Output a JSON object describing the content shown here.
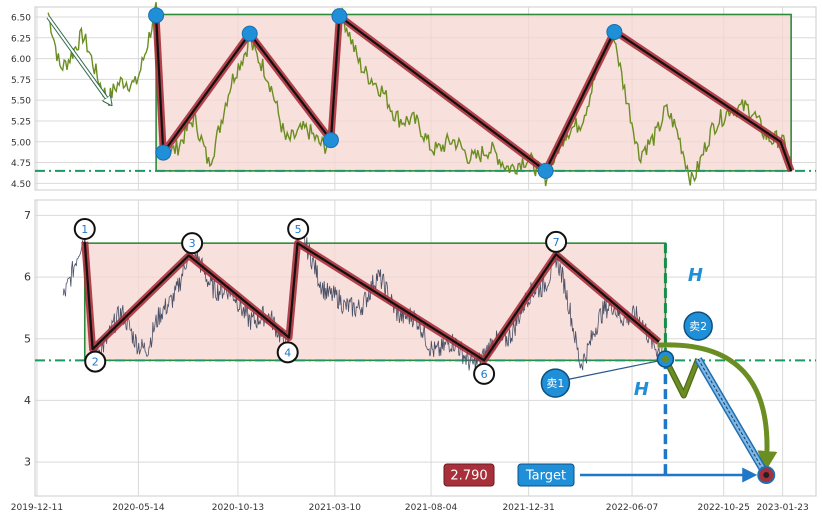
{
  "colors": {
    "panel_bg": "#eaeaf2",
    "grid": "#ffffff",
    "price_top": "#6b8e23",
    "price_bottom": "#4a5066",
    "box_fill": "#f5d5d0",
    "box_edge": "#2e8b3a",
    "zig_outer": "#a8303a",
    "zig_inner": "#111111",
    "node_blue": "#1f8fd8",
    "target_red": "#a8303a",
    "label_blue": "#1f8fd8",
    "dashed_green": "#178f46",
    "arrow_olive": "#6b8e23"
  },
  "chart_data": [
    {
      "type": "line",
      "panel": "top",
      "yticks": [
        "4.50",
        "4.75",
        "5.00",
        "5.25",
        "5.50",
        "5.75",
        "6.00",
        "6.25",
        "6.50"
      ],
      "ylim": [
        4.42,
        6.62
      ],
      "x_range_days": [
        0,
        1185
      ],
      "grid": true,
      "box": {
        "x0_day": 182,
        "x1_day": 1152,
        "y_low": 4.65,
        "y_high": 6.53
      },
      "support_level": 4.65,
      "zigzag": [
        {
          "day": 182,
          "value": 6.5
        },
        {
          "day": 193,
          "value": 4.87
        },
        {
          "day": 325,
          "value": 6.3
        },
        {
          "day": 449,
          "value": 5.02
        },
        {
          "day": 462,
          "value": 6.51
        },
        {
          "day": 777,
          "value": 4.65
        },
        {
          "day": 882,
          "value": 6.33
        },
        {
          "day": 1136,
          "value": 5.0
        },
        {
          "day": 1152,
          "value": 4.65
        }
      ],
      "blue_nodes": [
        {
          "day": 182,
          "value": 6.52
        },
        {
          "day": 193,
          "value": 4.87
        },
        {
          "day": 325,
          "value": 6.3
        },
        {
          "day": 449,
          "value": 5.02
        },
        {
          "day": 462,
          "value": 6.51
        },
        {
          "day": 777,
          "value": 4.65
        },
        {
          "day": 882,
          "value": 6.32
        }
      ],
      "trend_arrow": {
        "from": {
          "day": 17,
          "value": 6.5
        },
        "to": {
          "day": 113,
          "value": 5.45
        }
      }
    },
    {
      "type": "line",
      "panel": "bottom",
      "yticks": [
        "3",
        "4",
        "5",
        "6",
        "7"
      ],
      "ylim": [
        2.45,
        7.25
      ],
      "x_range_days": [
        0,
        1185
      ],
      "xtick_labels": [
        "2019-12-11",
        "2020-05-14",
        "2020-10-13",
        "2021-03-10",
        "2021-08-04",
        "2021-12-31",
        "2022-06-07",
        "2022-10-25",
        "2023-01-23"
      ],
      "xtick_days": [
        0,
        155,
        307,
        455,
        602,
        751,
        909,
        1049,
        1139
      ],
      "grid": true,
      "box": {
        "x0_day": 73,
        "x1_day": 960,
        "y_low": 4.65,
        "y_high": 6.55
      },
      "support_level": 4.65,
      "zigzag": [
        {
          "day": 73,
          "value": 6.57
        },
        {
          "day": 85,
          "value": 4.83
        },
        {
          "day": 232,
          "value": 6.35
        },
        {
          "day": 385,
          "value": 5.02
        },
        {
          "day": 398,
          "value": 6.55
        },
        {
          "day": 683,
          "value": 4.65
        },
        {
          "day": 793,
          "value": 6.37
        },
        {
          "day": 950,
          "value": 4.95
        }
      ],
      "numbered_points": [
        {
          "label": "1",
          "day": 73,
          "value": 6.78
        },
        {
          "label": "2",
          "day": 89,
          "value": 4.63
        },
        {
          "label": "3",
          "day": 237,
          "value": 6.55
        },
        {
          "label": "4",
          "day": 383,
          "value": 4.78
        },
        {
          "label": "5",
          "day": 399,
          "value": 6.78
        },
        {
          "label": "6",
          "day": 683,
          "value": 4.43
        },
        {
          "label": "7",
          "day": 793,
          "value": 6.57
        }
      ],
      "projection": {
        "break_point": {
          "day": 960,
          "value": 4.67
        },
        "pullback_low": {
          "day": 988,
          "value": 4.08
        },
        "retest_high": {
          "day": 1010,
          "value": 4.67
        },
        "target_point": {
          "day": 1114,
          "value": 2.79
        }
      },
      "annotations": {
        "height_label": "H",
        "sell1_label": "卖1",
        "sell2_label": "卖2",
        "target_label": "Target",
        "target_value": "2.790"
      }
    }
  ]
}
